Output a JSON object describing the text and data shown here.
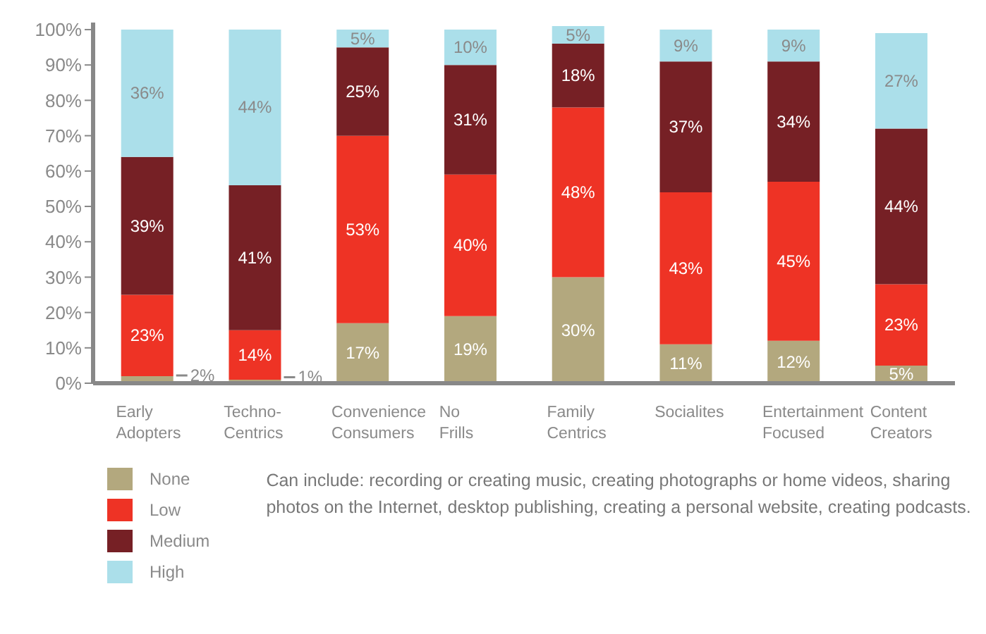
{
  "chart_data": {
    "type": "bar",
    "stacked": true,
    "categories": [
      "Early Adopters",
      "Techno-Centrics",
      "Convenience Consumers",
      "No Frills",
      "Family Centrics",
      "Socialites",
      "Entertainment Focused",
      "Content Creators"
    ],
    "series": [
      {
        "name": "None",
        "color": "#b3a87e",
        "values": [
          2,
          1,
          17,
          19,
          30,
          11,
          12,
          5
        ],
        "value_labels": [
          "2%",
          "1%",
          "17%",
          "19%",
          "30%",
          "11%",
          "12%",
          "5%"
        ]
      },
      {
        "name": "Low",
        "color": "#ee3325",
        "values": [
          23,
          14,
          53,
          40,
          48,
          43,
          45,
          23
        ],
        "value_labels": [
          "23%",
          "14%",
          "53%",
          "40%",
          "48%",
          "43%",
          "45%",
          "23%"
        ]
      },
      {
        "name": "Medium",
        "color": "#762025",
        "values": [
          39,
          41,
          25,
          31,
          18,
          37,
          34,
          44
        ],
        "value_labels": [
          "39%",
          "41%",
          "25%",
          "31%",
          "18%",
          "37%",
          "34%",
          "44%"
        ]
      },
      {
        "name": "High",
        "color": "#abdfea",
        "values": [
          36,
          44,
          5,
          10,
          5,
          9,
          9,
          27
        ],
        "value_labels": [
          "36%",
          "44%",
          "5%",
          "10%",
          "5%",
          "9%",
          "9%",
          "27%"
        ]
      }
    ],
    "ylim": [
      0,
      102
    ],
    "yticks": [
      {
        "value": 0,
        "label": "0%"
      },
      {
        "value": 10,
        "label": "10%"
      },
      {
        "value": 20,
        "label": "20%"
      },
      {
        "value": 30,
        "label": "30%"
      },
      {
        "value": 40,
        "label": "40%"
      },
      {
        "value": 50,
        "label": "50%"
      },
      {
        "value": 60,
        "label": "60%"
      },
      {
        "value": 70,
        "label": "70%"
      },
      {
        "value": 80,
        "label": "80%"
      },
      {
        "value": 90,
        "label": "90%"
      },
      {
        "value": 100,
        "label": "100%"
      }
    ],
    "grid": false,
    "legend": "bottom left",
    "annotations": [
      "Can include: recording or creating music, creating photographs or home videos, sharing photos on the Internet, desktop publishing, creating a personal website, creating podcasts."
    ]
  }
}
